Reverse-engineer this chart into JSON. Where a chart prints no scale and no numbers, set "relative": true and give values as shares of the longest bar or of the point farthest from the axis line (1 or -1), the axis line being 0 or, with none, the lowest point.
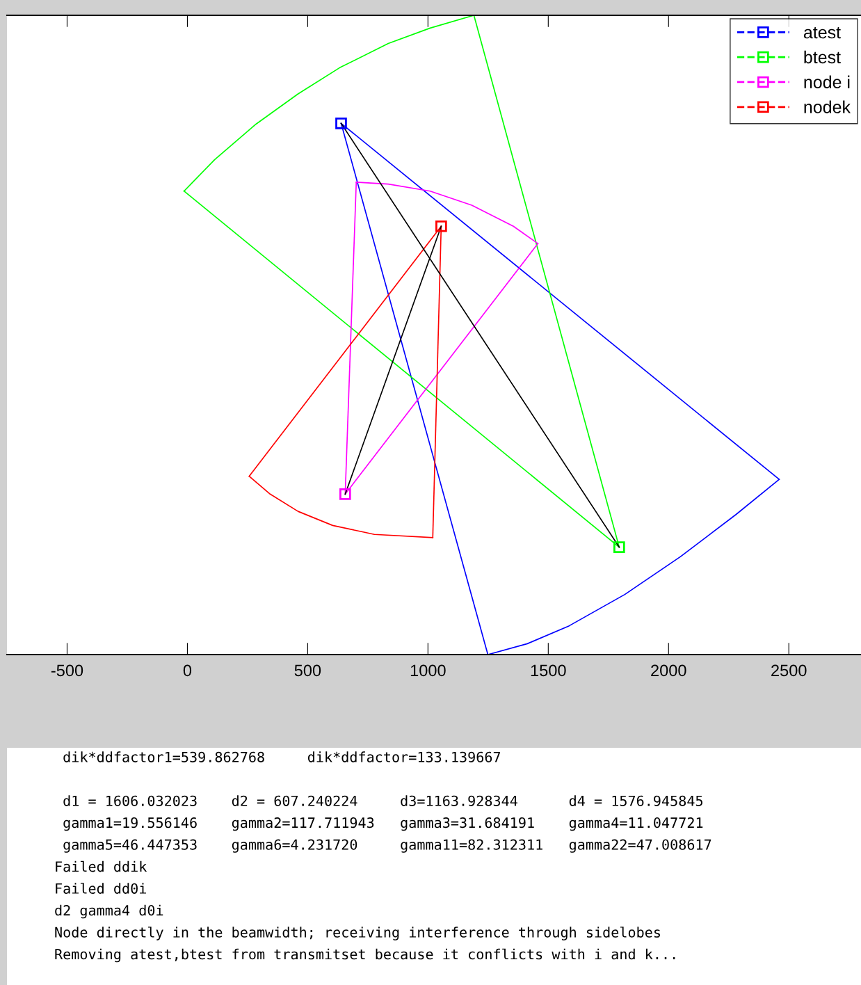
{
  "chart_data": {
    "type": "line",
    "relative": true,
    "xlim": [
      -750,
      2800
    ],
    "xticks": [
      -500,
      0,
      500,
      1000,
      1500,
      2000,
      2500
    ],
    "tick_labels": "x",
    "grid": false,
    "legend": "top right",
    "line_style": "solid",
    "series": [
      {
        "color": "#0000ff",
        "x": [
          639,
          2460
        ],
        "values": [
          0.831,
          0.274
        ]
      },
      {
        "color": "#0000ff",
        "x": [
          2460,
          2280,
          2049,
          1818,
          1587,
          1413,
          1249
        ],
        "values": [
          0.274,
          0.219,
          0.153,
          0.094,
          0.045,
          0.017,
          0.0
        ]
      },
      {
        "color": "#0000ff",
        "x": [
          1249,
          639
        ],
        "values": [
          0.0,
          0.831
        ]
      },
      {
        "color": "#00ff00",
        "x": [
          1795,
          -14
        ],
        "values": [
          0.168,
          0.725
        ]
      },
      {
        "color": "#00ff00",
        "x": [
          -14,
          113,
          286,
          460,
          633,
          835,
          1009,
          1191
        ],
        "values": [
          0.725,
          0.774,
          0.83,
          0.877,
          0.918,
          0.956,
          0.98,
          1.0
        ]
      },
      {
        "color": "#00ff00",
        "x": [
          1191,
          1795
        ],
        "values": [
          1.0,
          0.168
        ]
      },
      {
        "color": "#ff00ff",
        "x": [
          656,
          702
        ],
        "values": [
          0.251,
          0.739
        ]
      },
      {
        "color": "#ff00ff",
        "x": [
          702,
          835,
          1009,
          1182,
          1355,
          1457
        ],
        "values": [
          0.739,
          0.736,
          0.725,
          0.703,
          0.67,
          0.643
        ]
      },
      {
        "color": "#ff00ff",
        "x": [
          1457,
          656
        ],
        "values": [
          0.643,
          0.251
        ]
      },
      {
        "color": "#ff0000",
        "x": [
          1055,
          257
        ],
        "values": [
          0.67,
          0.279
        ]
      },
      {
        "color": "#ff0000",
        "x": [
          257,
          344,
          460,
          604,
          777,
          1020
        ],
        "values": [
          0.279,
          0.251,
          0.224,
          0.202,
          0.188,
          0.183
        ]
      },
      {
        "color": "#ff0000",
        "x": [
          1020,
          1055
        ],
        "values": [
          0.183,
          0.67
        ]
      },
      {
        "color": "#000000",
        "x": [
          639,
          1795
        ],
        "values": [
          0.831,
          0.168
        ]
      },
      {
        "color": "#000000",
        "x": [
          1055,
          656
        ],
        "values": [
          0.67,
          0.251
        ]
      },
      {
        "name": "atest",
        "color": "#0000ff",
        "line_style": "dashed",
        "marker": "square",
        "x": [
          639
        ],
        "values": [
          0.831
        ]
      },
      {
        "name": "btest",
        "color": "#00ff00",
        "line_style": "dashed",
        "marker": "square",
        "x": [
          1795
        ],
        "values": [
          0.168
        ]
      },
      {
        "name": "node i",
        "color": "#ff00ff",
        "line_style": "dashed",
        "marker": "square",
        "x": [
          656
        ],
        "values": [
          0.251
        ]
      },
      {
        "name": "nodek",
        "color": "#ff0000",
        "line_style": "dashed",
        "marker": "square",
        "x": [
          1055
        ],
        "values": [
          0.67
        ]
      }
    ],
    "annotations": [
      " dik*ddfactor1=539.862768     dik*ddfactor=133.139667",
      " d1 = 1606.032023    d2 = 607.240224     d3=1163.928344      d4 = 1576.945845",
      " gamma1=19.556146    gamma2=117.711943   gamma3=31.684191    gamma4=11.047721",
      " gamma5=46.447353    gamma6=4.231720     gamma11=82.312311   gamma22=47.008617",
      "Failed ddik",
      "Failed dd0i",
      "d2 gamma4 d0i",
      "Node directly in the beamwidth; receiving interference through sidelobes",
      "Removing atest,btest from transmitset because it conflicts with i and k..."
    ]
  }
}
